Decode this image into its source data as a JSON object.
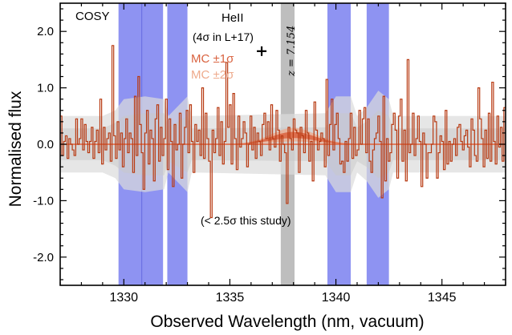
{
  "chart_data": {
    "type": "line",
    "xlabel": "Observed Wavelength (nm, vacuum)",
    "ylabel": "Normalised flux",
    "xlim": [
      1327,
      1348
    ],
    "ylim": [
      -2.5,
      2.5
    ],
    "x_ticks": [
      1330,
      1335,
      1340,
      1345
    ],
    "x_tick_labels": [
      "1330",
      "1335",
      "1340",
      "1345"
    ],
    "y_ticks": [
      -2.0,
      -1.0,
      0.0,
      1.0,
      2.0
    ],
    "y_tick_labels": [
      "-2.0",
      "-1.0",
      "0.0",
      "1.0",
      "2.0"
    ],
    "grid": false,
    "annotations": {
      "instrument": "COSY",
      "line_name": "HeII",
      "line_sig": "(4σ in L+17)",
      "mc1": "MC ±1σ",
      "mc2": "MC ±2σ",
      "redshift": "z = 7.154",
      "this_study": "(< 2.5σ this study)"
    },
    "colors": {
      "spectrum": "#b83a12",
      "mc1": "#d9623f",
      "mc2": "#eeaa8c",
      "model": "#e0603a",
      "noise": "#dcdcdc",
      "sky": "#6e74ee",
      "redshift_band": "#bebebe"
    },
    "sky_bands": [
      [
        1329.75,
        1330.85
      ],
      [
        1330.85,
        1331.85
      ],
      [
        1332.05,
        1333.0
      ],
      [
        1339.6,
        1340.7
      ],
      [
        1341.45,
        1342.5
      ]
    ],
    "redshift_band": [
      1337.4,
      1338.05
    ],
    "white_line_x": 1331.95,
    "marker": {
      "x": 1336.5,
      "y": 1.65
    },
    "spectrum": {
      "x_start": 1327.0,
      "x_end": 1348.0,
      "y": [
        0.5,
        -0.2,
        0.05,
        0.15,
        -0.25,
        0.1,
        0.0,
        -0.1,
        -0.2,
        0.45,
        0.0,
        0.1,
        0.45,
        -0.1,
        0.35,
        0.05,
        -0.15,
        0.05,
        0.3,
        -0.25,
        0.05,
        0.25,
        -0.15,
        0.8,
        -0.35,
        0.3,
        -0.1,
        0.1,
        0.2,
        -0.3,
        1.75,
        0.15,
        -0.25,
        0.4,
        -0.1,
        0.2,
        -0.4,
        0.1,
        0.45,
        -0.15,
        0.2,
        0.1,
        -0.5,
        0.85,
        -0.2,
        1.2,
        0.35,
        -0.15,
        -0.8,
        0.2,
        0.6,
        -0.35,
        0.25,
        0.1,
        -0.65,
        0.45,
        0.7,
        -0.3,
        0.3,
        -0.2,
        0.1,
        0.8,
        -0.45,
        0.45,
        0.05,
        -0.75,
        0.35,
        -0.1,
        0.0,
        0.55,
        -0.6,
        0.0,
        0.3,
        0.6,
        -0.15,
        0.7,
        0.05,
        -0.5,
        0.35,
        0.05,
        0.25,
        -0.2,
        1.0,
        -0.25,
        0.55,
        0.1,
        -0.3,
        -1.3,
        0.25,
        -0.15,
        0.1,
        0.65,
        -0.2,
        0.4,
        -0.35,
        0.05,
        1.45,
        0.3,
        0.7,
        -0.35,
        0.9,
        0.1,
        -0.45,
        0.5,
        -0.05,
        0.1,
        0.4,
        0.2,
        -0.4,
        0.0,
        0.5,
        -0.1,
        0.3,
        -0.25,
        0.2,
        0.05,
        -0.2,
        0.35,
        0.55,
        0.1,
        0.4,
        -0.1,
        0.7,
        0.1,
        -0.05,
        0.6,
        0.25,
        -0.3,
        0.15,
        0.0,
        -0.15,
        -1.05,
        0.3,
        0.1,
        -0.1,
        0.45,
        0.25,
        0.2,
        -0.5,
        0.3,
        0.15,
        -0.15,
        0.6,
        0.2,
        -0.3,
        0.05,
        -0.65,
        0.75,
        0.25,
        -0.1,
        0.05,
        0.2,
        0.1,
        -0.4,
        1.15,
        -0.2,
        0.35,
        0.8,
        -0.1,
        0.35,
        0.55,
        0.1,
        -0.35,
        -0.3,
        -0.5,
        0.05,
        -0.3,
        0.1,
        0.55,
        -0.25,
        0.3,
        -0.2,
        -0.1,
        0.6,
        0.0,
        0.45,
        0.65,
        -0.15,
        0.45,
        -0.3,
        -0.5,
        -0.1,
        0.1,
        0.2,
        0.5,
        0.05,
        -0.95,
        0.85,
        -0.65,
        0.1,
        -0.3,
        -0.15,
        0.35,
        0.55,
        0.25,
        -0.6,
        0.5,
        0.8,
        -0.3,
        0.25,
        -0.65,
        1.5,
        -0.15,
        0.0,
        0.55,
        -0.2,
        0.1,
        0.5,
        0.05,
        -0.75,
        0.2,
        0.0,
        -0.6,
        -0.15,
        -0.15,
        0.0,
        0.5,
        0.4,
        -0.6,
        -0.15,
        0.15,
        0.05,
        -0.45,
        0.6,
        -0.35,
        0.05,
        -0.3,
        0.0,
        0.1,
        -0.2,
        0.3,
        0.35,
        0.05,
        -0.1,
        0.15,
        0.25,
        -0.05,
        -0.4,
        0.45,
        0.25,
        -0.2,
        -0.3,
        1.0,
        0.45,
        0.1,
        -0.4,
        0.25,
        -0.25,
        0.55,
        -0.3,
        1.1,
        0.05,
        -0.35,
        0.5,
        -0.05,
        0.3,
        -0.3,
        0.65
      ]
    },
    "noise_1sigma": [
      [
        1327.0,
        0.28
      ],
      [
        1329.0,
        0.28
      ],
      [
        1329.6,
        0.38
      ],
      [
        1330.0,
        0.5
      ],
      [
        1331.0,
        0.55
      ],
      [
        1331.9,
        0.55
      ],
      [
        1332.1,
        0.3
      ],
      [
        1333.0,
        0.5
      ],
      [
        1333.2,
        0.28
      ],
      [
        1339.5,
        0.3
      ],
      [
        1340.0,
        0.55
      ],
      [
        1340.7,
        0.55
      ],
      [
        1341.0,
        0.3
      ],
      [
        1341.45,
        0.4
      ],
      [
        1342.0,
        0.6
      ],
      [
        1342.5,
        0.5
      ],
      [
        1342.7,
        0.28
      ],
      [
        1348.0,
        0.28
      ]
    ],
    "noise_2sigma": [
      [
        1327.0,
        0.5
      ],
      [
        1329.0,
        0.5
      ],
      [
        1329.6,
        0.6
      ],
      [
        1330.0,
        0.8
      ],
      [
        1331.0,
        0.85
      ],
      [
        1331.9,
        0.8
      ],
      [
        1332.1,
        0.5
      ],
      [
        1333.0,
        0.85
      ],
      [
        1333.2,
        0.5
      ],
      [
        1339.5,
        0.55
      ],
      [
        1340.0,
        0.85
      ],
      [
        1340.7,
        0.85
      ],
      [
        1341.0,
        0.5
      ],
      [
        1341.45,
        0.65
      ],
      [
        1342.0,
        0.95
      ],
      [
        1342.5,
        0.8
      ],
      [
        1342.7,
        0.5
      ],
      [
        1348.0,
        0.5
      ]
    ],
    "mc_center": 1338.0,
    "mc_amplitude": 0.2,
    "mc_width": 1.05
  }
}
